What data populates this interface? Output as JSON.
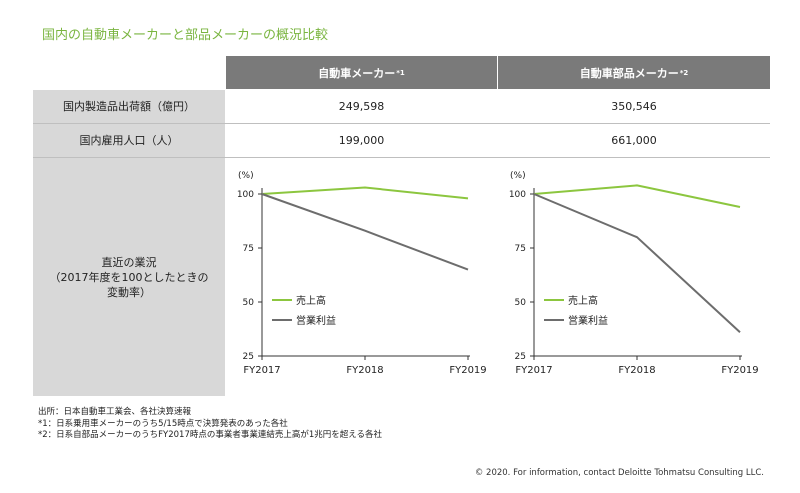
{
  "title": "国内の自動車メーカーと部品メーカーの概況比較",
  "table": {
    "columns": [
      {
        "label": "自動車メーカー",
        "note": "*1"
      },
      {
        "label": "自動車部品メーカー",
        "note": "*2"
      }
    ],
    "rows": [
      {
        "label": "国内製造品出荷額（億円）",
        "values": [
          "249,598",
          "350,546"
        ]
      },
      {
        "label": "国内雇用人口（人）",
        "values": [
          "199,000",
          "661,000"
        ]
      }
    ],
    "chart_row_label": [
      "直近の業況",
      "（2017年度を100としたときの",
      "変動率）"
    ]
  },
  "chart_data": [
    {
      "type": "line",
      "ylabel": "(%)",
      "x": [
        "FY2017",
        "FY2018",
        "FY2019"
      ],
      "yticks": [
        "100",
        "75",
        "50",
        "25"
      ],
      "ylim": [
        25,
        100
      ],
      "series": [
        {
          "name": "売上高",
          "values": [
            100,
            103,
            98
          ],
          "color": "#8cc63f"
        },
        {
          "name": "営業利益",
          "values": [
            100,
            83,
            65
          ],
          "color": "#6d6d6d"
        }
      ]
    },
    {
      "type": "line",
      "ylabel": "(%)",
      "x": [
        "FY2017",
        "FY2018",
        "FY2019"
      ],
      "yticks": [
        "100",
        "75",
        "50",
        "25"
      ],
      "ylim": [
        25,
        100
      ],
      "series": [
        {
          "name": "売上高",
          "values": [
            100,
            104,
            94
          ],
          "color": "#8cc63f"
        },
        {
          "name": "営業利益",
          "values": [
            100,
            80,
            36
          ],
          "color": "#6d6d6d"
        }
      ]
    }
  ],
  "notes": [
    "出所：日本自動車工業会、各社決算速報",
    "*1：日系乗用車メーカーのうち5/15時点で決算発表のあった各社",
    "*2：日系自部品メーカーのうちFY2017時点の事業者事業連結売上高が1兆円を超える各社"
  ],
  "copyright": "© 2020. For information, contact Deloitte Tohmatsu Consulting LLC."
}
